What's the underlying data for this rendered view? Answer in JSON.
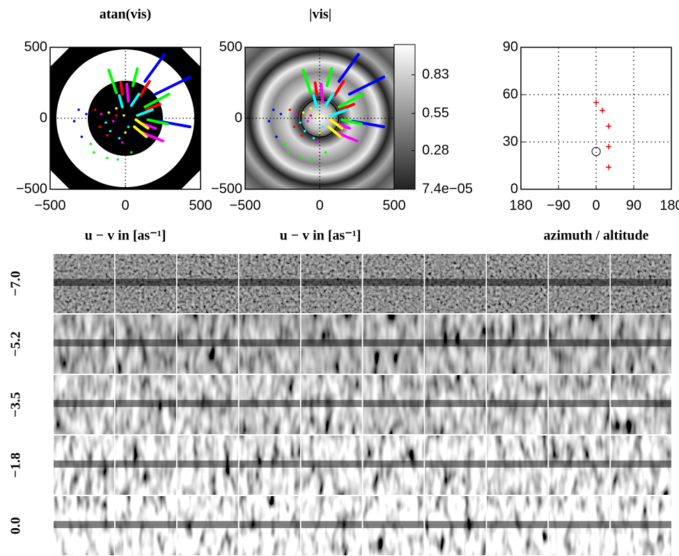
{
  "chart_data": [
    {
      "type": "uv",
      "title": "atan(vis)",
      "xlabel": "u − v in [as⁻¹]",
      "xlim": [
        -500,
        500
      ],
      "ylim": [
        -500,
        500
      ],
      "xticks": [
        {
          "value": -500,
          "label": "−500"
        },
        0,
        500
      ],
      "yticks": [
        {
          "value": -500,
          "label": "−500"
        },
        0,
        500
      ],
      "tracks": [
        {
          "color": "#0000ff",
          "segments": [
            [
              130,
              260,
              260,
              450
            ],
            [
              200,
              170,
              430,
              290
            ],
            [
              220,
              -20,
              430,
              -60
            ]
          ]
        },
        {
          "color": "#00ff00",
          "segments": [
            [
              -60,
              180,
              -110,
              340
            ],
            [
              50,
              230,
              80,
              350
            ],
            [
              130,
              80,
              290,
              170
            ],
            [
              150,
              -10,
              280,
              -40
            ]
          ]
        },
        {
          "color": "#ff0000",
          "segments": [
            [
              -20,
              170,
              -30,
              250
            ],
            [
              100,
              160,
              160,
              260
            ],
            [
              140,
              60,
              230,
              100
            ]
          ]
        },
        {
          "color": "#00ffff",
          "segments": [
            [
              -20,
              80,
              -40,
              160
            ],
            [
              40,
              90,
              90,
              170
            ],
            [
              80,
              20,
              180,
              60
            ]
          ]
        },
        {
          "color": "#ff00ff",
          "segments": [
            [
              20,
              120,
              10,
              240
            ],
            [
              120,
              -40,
              200,
              -70
            ],
            [
              110,
              -100,
              250,
              -160
            ]
          ]
        },
        {
          "color": "#ffff00",
          "segments": [
            [
              70,
              -10,
              150,
              -70
            ],
            [
              60,
              -60,
              140,
              -130
            ]
          ]
        }
      ],
      "dots": [
        {
          "color": "#0000ff",
          "x": [
            -310,
            -340,
            -290,
            -260
          ],
          "y": [
            60,
            -20,
            -130,
            30
          ]
        },
        {
          "color": "#00ff00",
          "x": [
            -210,
            -120,
            -50,
            40,
            -230
          ],
          "y": [
            -240,
            -280,
            -290,
            -240,
            -180
          ]
        },
        {
          "color": "#ff0000",
          "x": [
            -170,
            -120,
            -60,
            -200
          ],
          "y": [
            -60,
            -120,
            20,
            60
          ]
        },
        {
          "color": "#00ffff",
          "x": [
            -100,
            -40,
            -130,
            20
          ],
          "y": [
            -90,
            -140,
            -30,
            -60
          ]
        },
        {
          "color": "#ff00ff",
          "x": [
            -160,
            -80,
            -20
          ],
          "y": [
            30,
            -20,
            -170
          ]
        },
        {
          "color": "#ffff00",
          "x": [
            -60,
            -10,
            -110,
            0
          ],
          "y": [
            70,
            20,
            40,
            -100
          ]
        }
      ]
    },
    {
      "type": "heatmap",
      "title": "|vis|",
      "xlabel": "u − v in [as⁻¹]",
      "xlim": [
        -500,
        500
      ],
      "ylim": [
        -500,
        500
      ],
      "xticks": [
        {
          "value": -500,
          "label": "−500"
        },
        0,
        500
      ],
      "yticks": [
        {
          "value": -500,
          "label": "−500"
        },
        0,
        500
      ],
      "colorbar": {
        "lim": [
          0,
          1.05
        ],
        "ticks": [
          0.83,
          0.55,
          0.28,
          {
            "value": 7.4e-05,
            "label": "7.4e−05"
          }
        ]
      }
    },
    {
      "type": "scatter",
      "xlabel": "azimuth / altitude",
      "xlim": [
        -180,
        180
      ],
      "ylim": [
        0,
        90
      ],
      "xticks": [
        {
          "value": -180,
          "label": "180"
        },
        {
          "value": -90,
          "label": "−90"
        },
        0,
        90,
        180
      ],
      "yticks": [
        0,
        30,
        60,
        90
      ],
      "grid": true,
      "series": [
        {
          "color": "#e00000",
          "marker": "plus",
          "x": [
            0,
            15,
            30,
            30,
            30
          ],
          "y": [
            55,
            50,
            40,
            27,
            14
          ]
        },
        {
          "color": "#000000",
          "marker": "circle",
          "x": [
            0
          ],
          "y": [
            24
          ]
        }
      ]
    }
  ],
  "image_grid": {
    "row_labels": [
      "−7.0",
      "−5.2",
      "−3.5",
      "−1.8",
      "0.0"
    ],
    "columns": 10
  }
}
